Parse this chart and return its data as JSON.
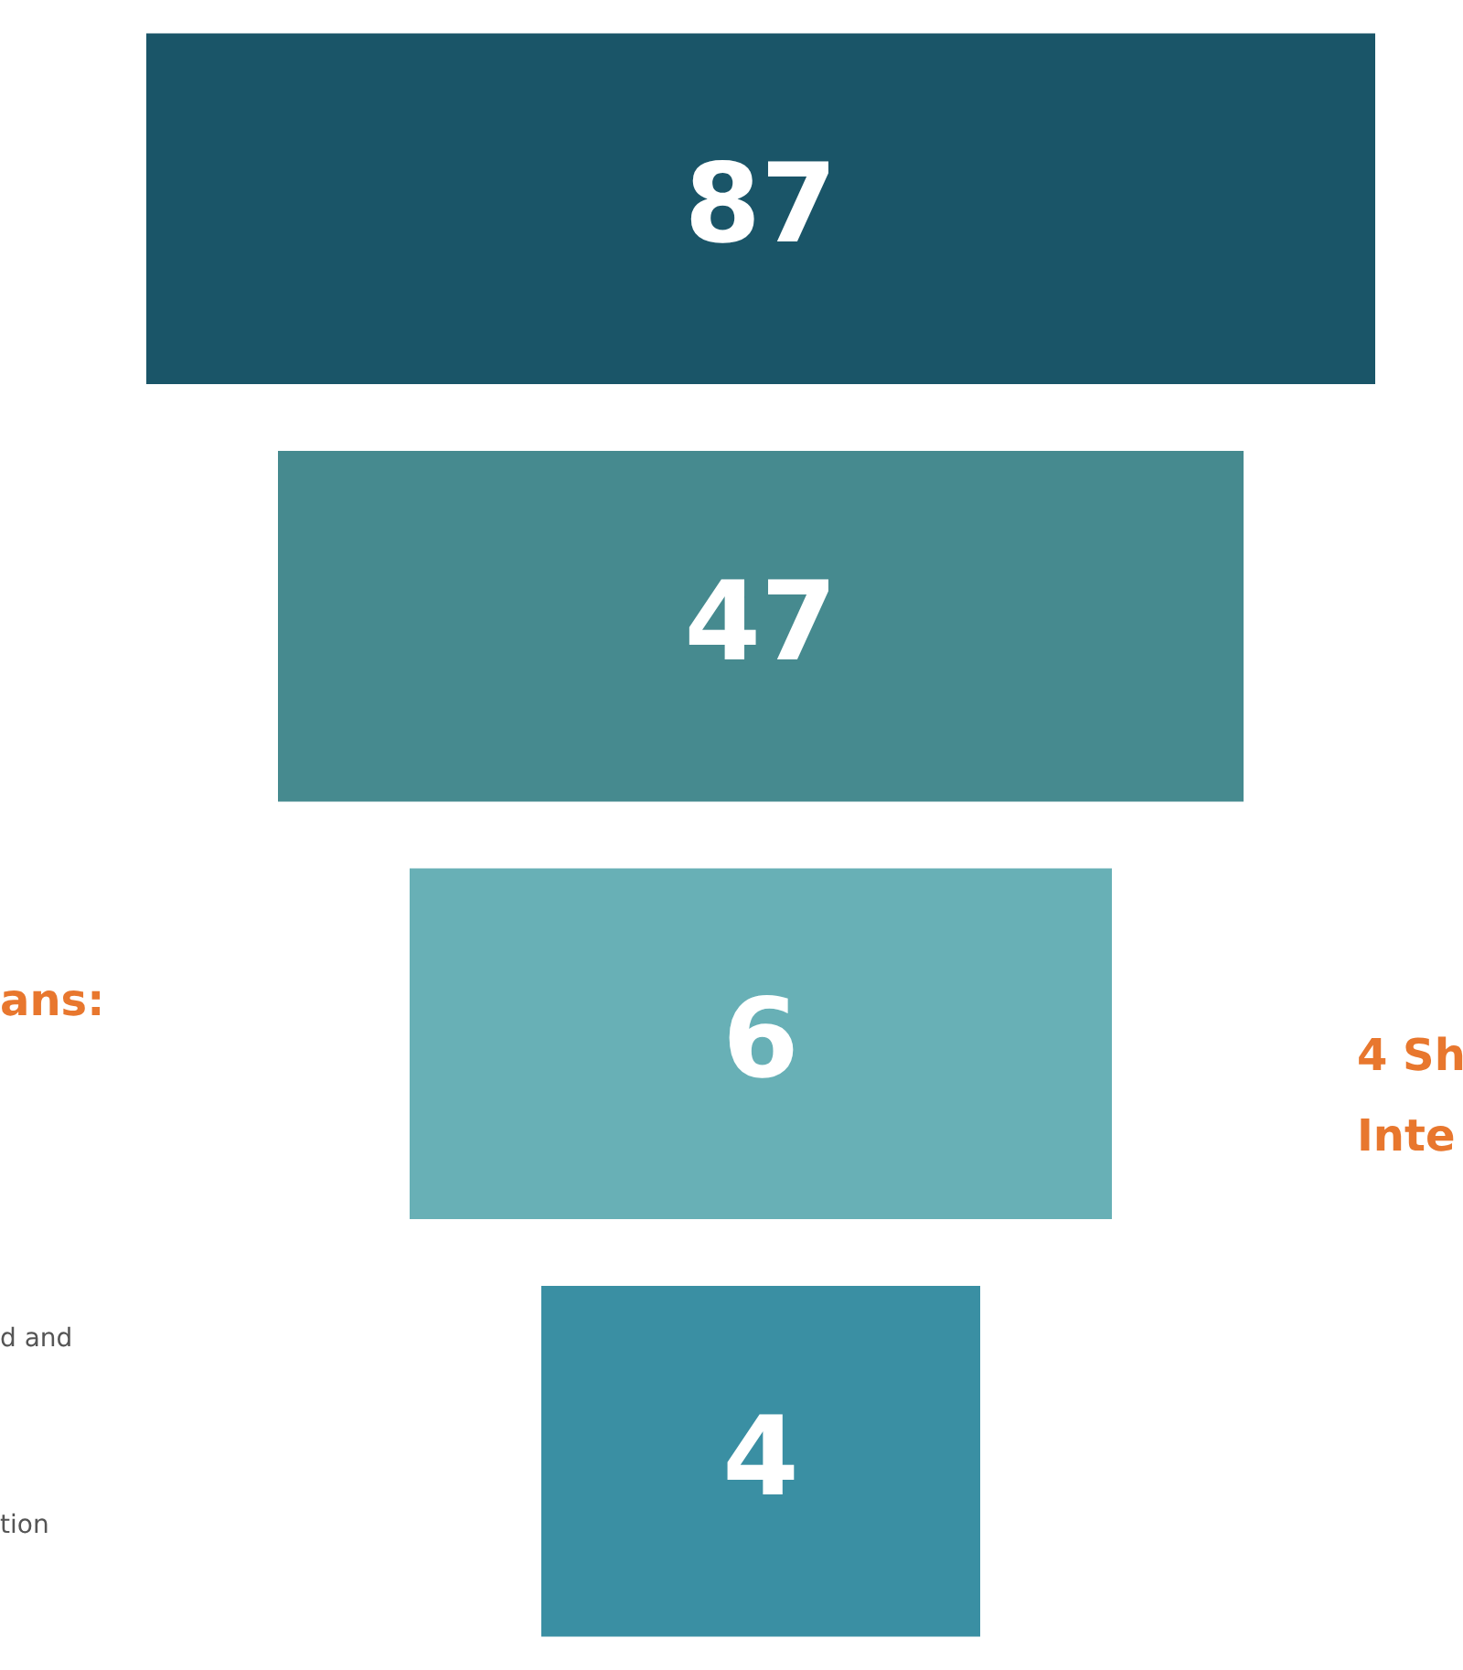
{
  "chart_data": {
    "type": "other",
    "categories": [
      null,
      null,
      null,
      null
    ],
    "values": [
      87,
      47,
      6,
      4
    ],
    "colors": [
      "#1a5568",
      "#468a8f",
      "#68b0b6",
      "#3a8fa3"
    ],
    "data_labels": true,
    "annotations": [
      "ans:",
      "d and",
      "tion",
      "4 Sh",
      "Inte"
    ]
  }
}
